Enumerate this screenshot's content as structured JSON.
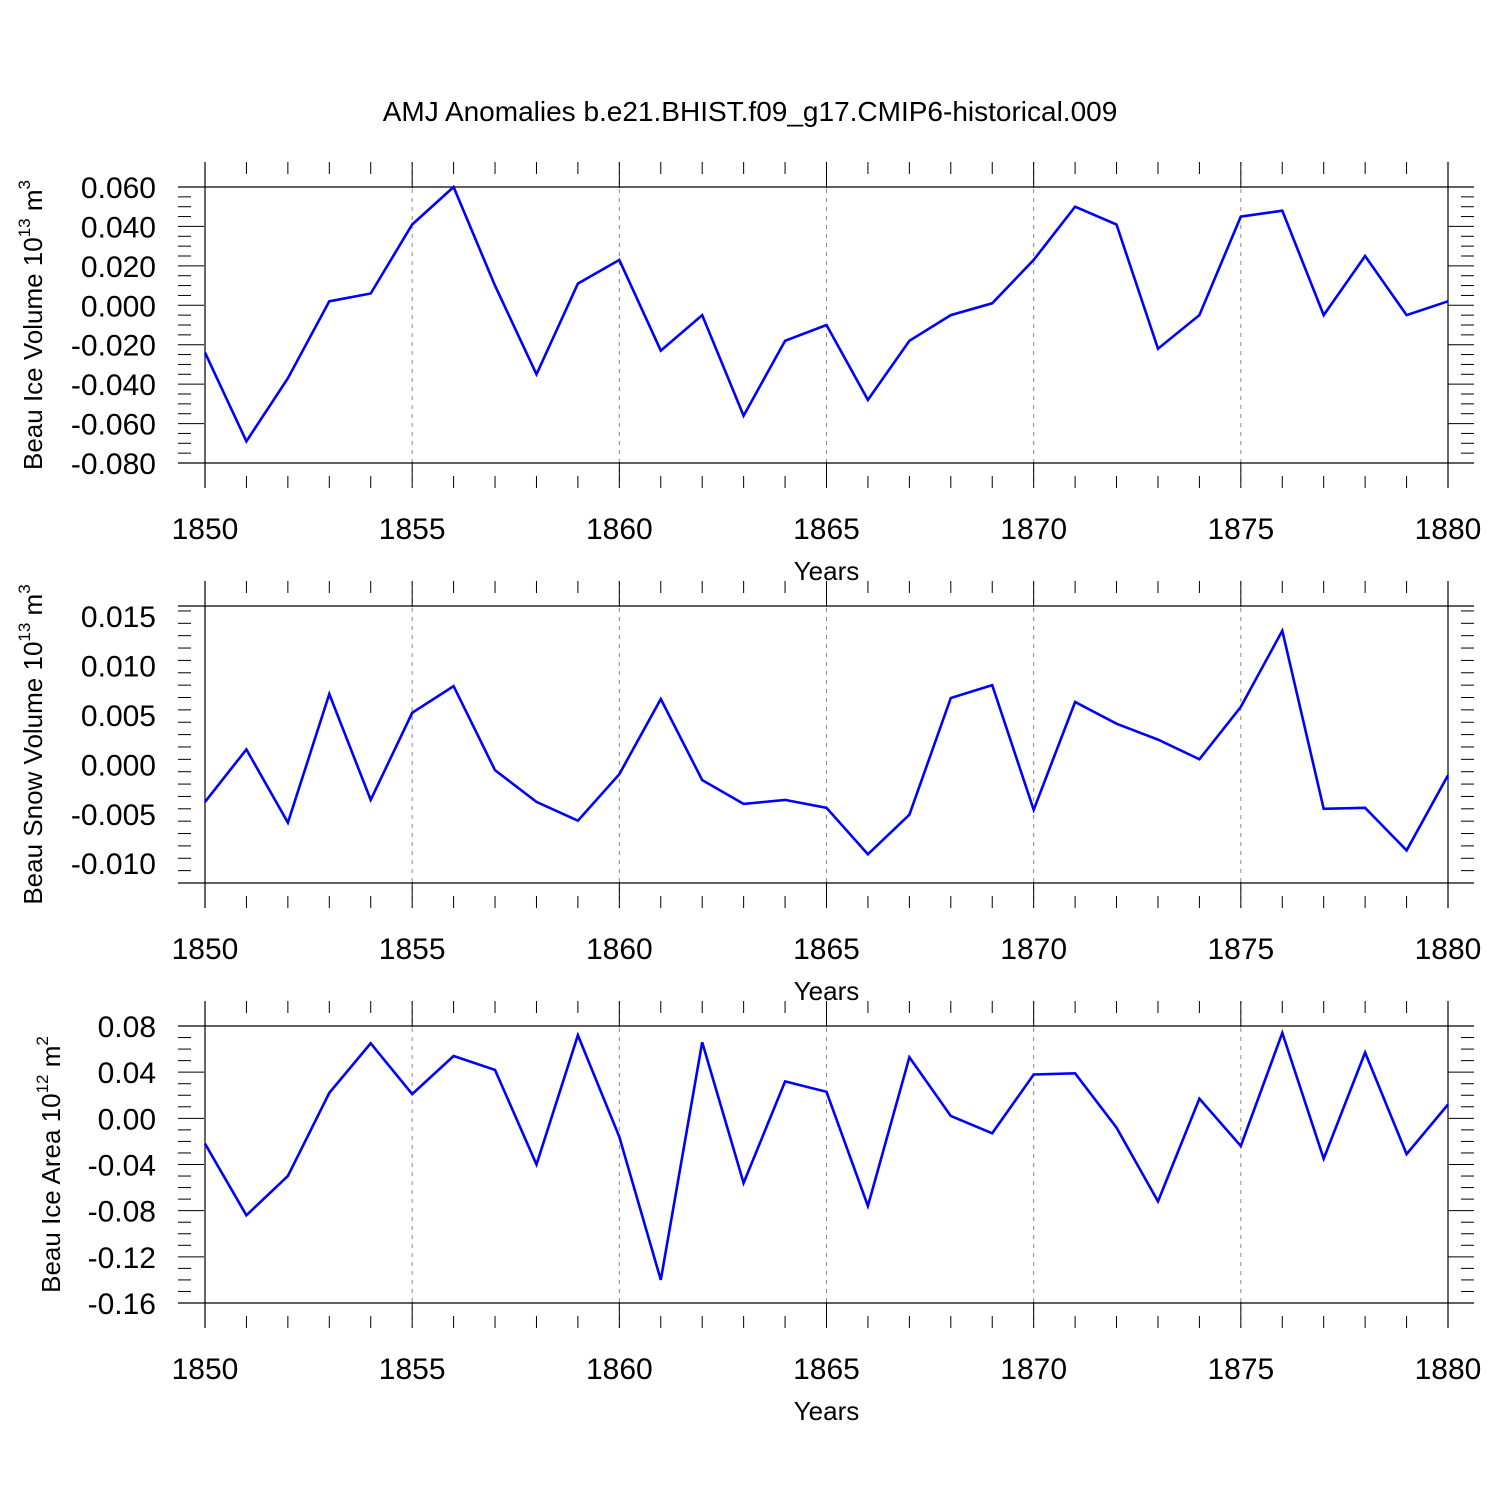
{
  "title": "AMJ Anomalies b.e21.BHIST.f09_g17.CMIP6-historical.009",
  "colors": {
    "line": "#0000ff",
    "axis": "#000000",
    "grid": "#888888"
  },
  "chart_data": [
    {
      "type": "line",
      "name": "ice-volume",
      "ylabel_main": "Beau Ice Volume 10",
      "ylabel_exp": "13",
      "ylabel_unit": " m",
      "ylabel_unit_exp": "3",
      "xlabel": "Years",
      "xlim": [
        1850,
        1880
      ],
      "ylim": [
        -0.08,
        0.06
      ],
      "xticks": [
        "1850",
        "1855",
        "1860",
        "1865",
        "1870",
        "1875",
        "1880"
      ],
      "yticks": [
        "0.060",
        "0.040",
        "0.020",
        "0.000",
        "-0.020",
        "-0.040",
        "-0.060",
        "-0.080"
      ],
      "x": [
        1850,
        1851,
        1852,
        1853,
        1854,
        1855,
        1856,
        1857,
        1858,
        1859,
        1860,
        1861,
        1862,
        1863,
        1864,
        1865,
        1866,
        1867,
        1868,
        1869,
        1870,
        1871,
        1872,
        1873,
        1874,
        1875,
        1876,
        1877,
        1878,
        1879,
        1880
      ],
      "values": [
        -0.024,
        -0.069,
        -0.037,
        0.002,
        0.006,
        0.041,
        0.06,
        0.01,
        -0.035,
        0.011,
        0.023,
        -0.023,
        -0.005,
        -0.056,
        -0.018,
        -0.01,
        -0.048,
        -0.018,
        -0.005,
        0.001,
        0.023,
        0.05,
        0.041,
        -0.022,
        -0.005,
        0.045,
        0.048,
        -0.005,
        0.025,
        -0.005,
        0.002
      ]
    },
    {
      "type": "line",
      "name": "snow-volume",
      "ylabel_main": "Beau Snow Volume 10",
      "ylabel_exp": "13",
      "ylabel_unit": " m",
      "ylabel_unit_exp": "3",
      "xlabel": "Years",
      "xlim": [
        1850,
        1880
      ],
      "ylim": [
        -0.012,
        0.016
      ],
      "xticks": [
        "1850",
        "1855",
        "1860",
        "1865",
        "1870",
        "1875",
        "1880"
      ],
      "yticks": [
        "0.015",
        "0.010",
        "0.005",
        "0.000",
        "-0.005",
        "-0.010"
      ],
      "x": [
        1850,
        1851,
        1852,
        1853,
        1854,
        1855,
        1856,
        1857,
        1858,
        1859,
        1860,
        1861,
        1862,
        1863,
        1864,
        1865,
        1866,
        1867,
        1868,
        1869,
        1870,
        1871,
        1872,
        1873,
        1874,
        1875,
        1876,
        1877,
        1878,
        1879,
        1880
      ],
      "values": [
        -0.0038,
        0.0015,
        -0.0059,
        0.0071,
        -0.0036,
        0.0052,
        0.0079,
        -0.0006,
        -0.0038,
        -0.0057,
        -0.001,
        0.0066,
        -0.0016,
        -0.004,
        -0.0036,
        -0.0044,
        -0.0091,
        -0.0051,
        0.0067,
        0.008,
        -0.0046,
        0.0063,
        0.0041,
        0.0025,
        0.0005,
        0.0058,
        0.0135,
        -0.0045,
        -0.0044,
        -0.0087,
        -0.0011
      ]
    },
    {
      "type": "line",
      "name": "ice-area",
      "ylabel_main": "Beau Ice Area 10",
      "ylabel_exp": "12",
      "ylabel_unit": " m",
      "ylabel_unit_exp": "2",
      "xlabel": "Years",
      "xlim": [
        1850,
        1880
      ],
      "ylim": [
        -0.16,
        0.08
      ],
      "xticks": [
        "1850",
        "1855",
        "1860",
        "1865",
        "1870",
        "1875",
        "1880"
      ],
      "yticks": [
        "0.08",
        "0.04",
        "0.00",
        "-0.04",
        "-0.08",
        "-0.12",
        "-0.16"
      ],
      "x": [
        1850,
        1851,
        1852,
        1853,
        1854,
        1855,
        1856,
        1857,
        1858,
        1859,
        1860,
        1861,
        1862,
        1863,
        1864,
        1865,
        1866,
        1867,
        1868,
        1869,
        1870,
        1871,
        1872,
        1873,
        1874,
        1875,
        1876,
        1877,
        1878,
        1879,
        1880
      ],
      "values": [
        -0.022,
        -0.084,
        -0.05,
        0.022,
        0.065,
        0.021,
        0.054,
        0.042,
        -0.04,
        0.072,
        -0.016,
        -0.14,
        0.066,
        -0.056,
        0.032,
        0.023,
        -0.076,
        0.053,
        0.002,
        -0.013,
        0.038,
        0.039,
        -0.008,
        -0.072,
        0.017,
        -0.024,
        0.074,
        -0.035,
        0.057,
        -0.031,
        0.012
      ]
    }
  ]
}
